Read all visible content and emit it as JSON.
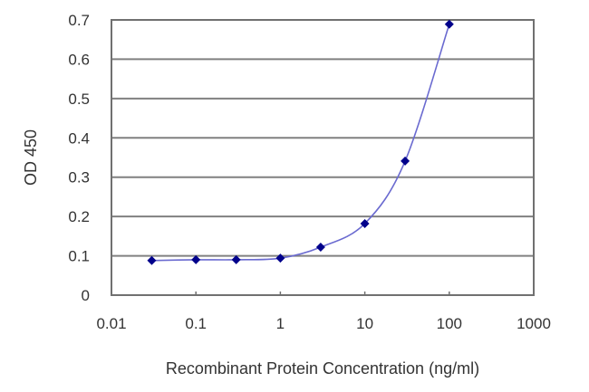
{
  "chart_data": {
    "type": "line",
    "title": "",
    "xlabel": "Recombinant Protein Concentration (ng/ml)",
    "ylabel": "OD 450",
    "x_scale": "log",
    "xlim": [
      0.01,
      1000
    ],
    "ylim": [
      0,
      0.7
    ],
    "x_ticks": [
      "0.01",
      "0.1",
      "1",
      "10",
      "100",
      "1000"
    ],
    "y_ticks": [
      "0",
      "0.1",
      "0.2",
      "0.3",
      "0.4",
      "0.5",
      "0.6",
      "0.7"
    ],
    "grid": {
      "horizontal": true,
      "vertical": false
    },
    "legend": null,
    "series": [
      {
        "name": "OD 450",
        "x": [
          0.03,
          0.1,
          0.3,
          1,
          3,
          10,
          30,
          100
        ],
        "values": [
          0.088,
          0.09,
          0.09,
          0.094,
          0.122,
          0.182,
          0.341,
          0.689
        ],
        "marker": "diamond",
        "marker_color": "#00008b",
        "line_color": "#6a6ad0",
        "smooth": true
      }
    ]
  },
  "colors": {
    "grid": "#808080",
    "axis": "#707070",
    "marker": "#00008b",
    "line": "#6a6ad0"
  }
}
